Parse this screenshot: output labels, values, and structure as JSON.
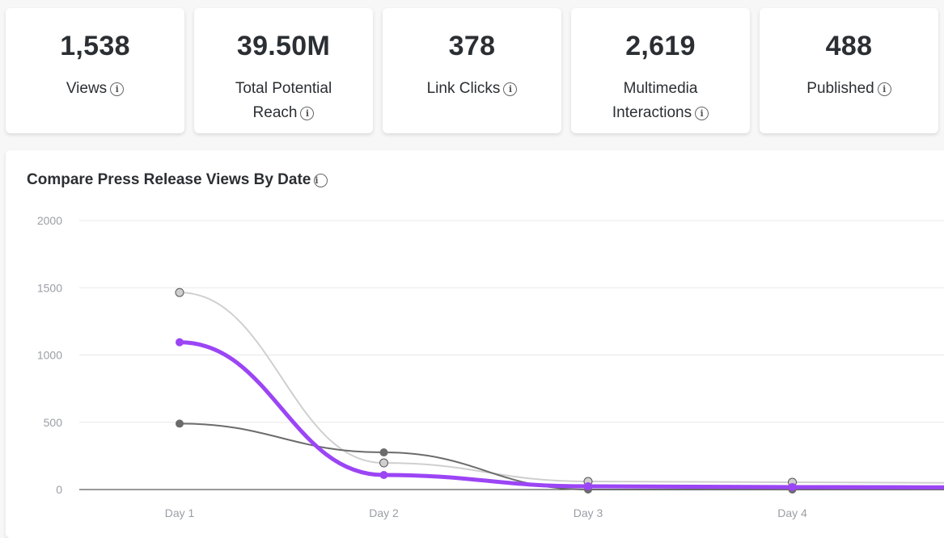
{
  "cards": [
    {
      "value": "1,538",
      "label": "Views"
    },
    {
      "value": "39.50M",
      "label": "Total Potential Reach"
    },
    {
      "value": "378",
      "label": "Link Clicks"
    },
    {
      "value": "2,619",
      "label": "Multimedia Interactions"
    },
    {
      "value": "488",
      "label": "Published"
    }
  ],
  "info_icon": "i",
  "chart_data": {
    "type": "line",
    "title": "Compare Press Release Views By Date",
    "categories": [
      "Day 1",
      "Day 2",
      "Day 3",
      "Day 4"
    ],
    "ylim": [
      0,
      2000
    ],
    "yticks": [
      0,
      500,
      1000,
      1500,
      2000
    ],
    "grid": true,
    "series": [
      {
        "color": "#cfcfcf",
        "values": [
          1465,
          198,
          60,
          54
        ]
      },
      {
        "color": "#6b6b6b",
        "values": [
          490,
          276,
          0,
          0
        ]
      },
      {
        "color": "#9b45f5",
        "values": [
          1095,
          108,
          24,
          18
        ]
      }
    ]
  }
}
